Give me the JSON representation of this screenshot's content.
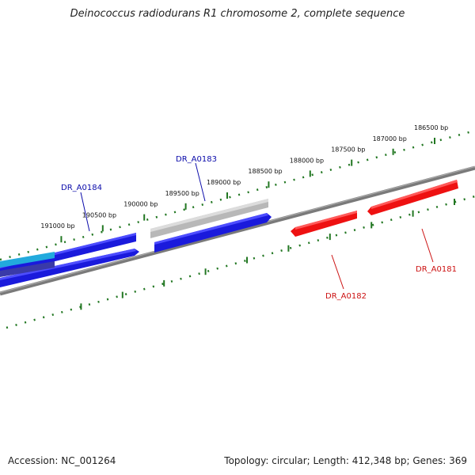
{
  "title": "Deinococcus radiodurans R1 chromosome 2, complete sequence",
  "footer": {
    "accession": "Accession: NC_001264",
    "summary": "Topology: circular; Length: 412,348 bp; Genes: 369"
  },
  "colors": {
    "forward_gene": "#1a1adc",
    "reverse_gene": "#ee1111",
    "highlight_gene": "#22aadd",
    "pseudo_gene": "#b8b8b8",
    "backbone": "#808080",
    "ticks": "#227722",
    "forward_label": "#0a0aaa",
    "reverse_label": "#cc1111"
  },
  "ticks": [
    {
      "label": "186500 bp",
      "bp": 186500
    },
    {
      "label": "187000 bp",
      "bp": 187000
    },
    {
      "label": "187500 bp",
      "bp": 187500
    },
    {
      "label": "188000 bp",
      "bp": 188000
    },
    {
      "label": "188500 bp",
      "bp": 188500
    },
    {
      "label": "189000 bp",
      "bp": 189000
    },
    {
      "label": "189500 bp",
      "bp": 189500
    },
    {
      "label": "190000 bp",
      "bp": 190000
    },
    {
      "label": "190500 bp",
      "bp": 190500
    },
    {
      "label": "191000 bp",
      "bp": 191000
    }
  ],
  "genes": [
    {
      "name": "DR_A0184",
      "strand": "forward",
      "labeled": true
    },
    {
      "name": "DR_A0183",
      "strand": "forward",
      "labeled": true
    },
    {
      "name": "DR_A0182",
      "strand": "reverse",
      "labeled": true
    },
    {
      "name": "DR_A0181",
      "strand": "reverse",
      "labeled": true
    }
  ]
}
